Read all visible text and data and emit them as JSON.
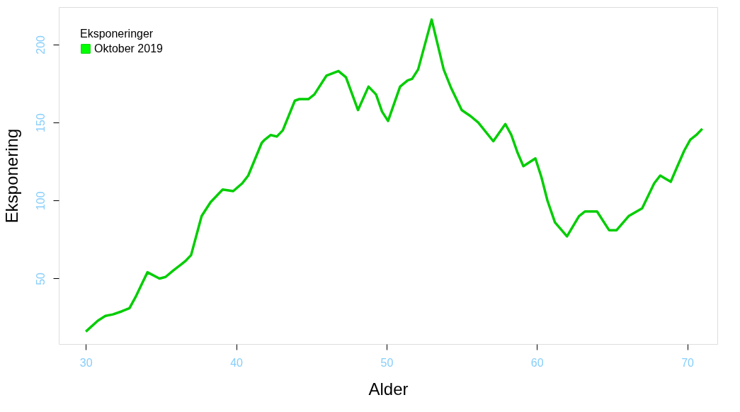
{
  "chart_data": {
    "type": "line",
    "xlabel": "Alder",
    "ylabel": "Eksponering",
    "legend_title": "Eksponeringer",
    "legend": "top left",
    "grid": false,
    "line_style": "solid",
    "marker": "none",
    "xlim": [
      28.2,
      72.0
    ],
    "ylim": [
      8,
      224
    ],
    "xticks": [
      30,
      40,
      50,
      60,
      70
    ],
    "yticks": [
      50,
      100,
      150,
      200
    ],
    "series": [
      {
        "name": "Oktober 2019",
        "color": "#00cd00",
        "x": [
          30,
          30.8,
          31.3,
          31.8,
          32.4,
          32.9,
          33.3,
          33.8,
          34.1,
          34.9,
          35.3,
          35.8,
          36.6,
          37.0,
          37.7,
          38.3,
          39.1,
          39.8,
          40.4,
          40.8,
          41.7,
          41.9,
          42.3,
          42.7,
          43.1,
          43.9,
          44.2,
          44.8,
          45.2,
          46.0,
          46.8,
          47.3,
          48.1,
          48.8,
          49.3,
          49.7,
          50.1,
          50.9,
          51.4,
          51.7,
          52.1,
          53.0,
          53.8,
          54.3,
          55.0,
          55.6,
          56.1,
          57.1,
          57.9,
          58.3,
          58.7,
          59.1,
          59.9,
          60.3,
          60.7,
          61.2,
          62.0,
          62.8,
          63.2,
          64.0,
          64.8,
          65.3,
          66.1,
          67.0,
          67.8,
          68.2,
          68.9,
          69.3,
          69.8,
          70.2,
          70.6,
          71.0
        ],
        "values": [
          16,
          23,
          26,
          27,
          29,
          31,
          38,
          48,
          54,
          50,
          51,
          55,
          61,
          65,
          90,
          99,
          107,
          106,
          111,
          116,
          137,
          139,
          142,
          141,
          145,
          164,
          165,
          165,
          168,
          180,
          183,
          179,
          158,
          173,
          168,
          157,
          151,
          173,
          177,
          178,
          184,
          216,
          184,
          172,
          158,
          154,
          150,
          138,
          149,
          142,
          131,
          122,
          127,
          115,
          100,
          86,
          77,
          90,
          93,
          93,
          81,
          81,
          90,
          95,
          111,
          116,
          112,
          121,
          132,
          139,
          142,
          146
        ]
      }
    ]
  }
}
